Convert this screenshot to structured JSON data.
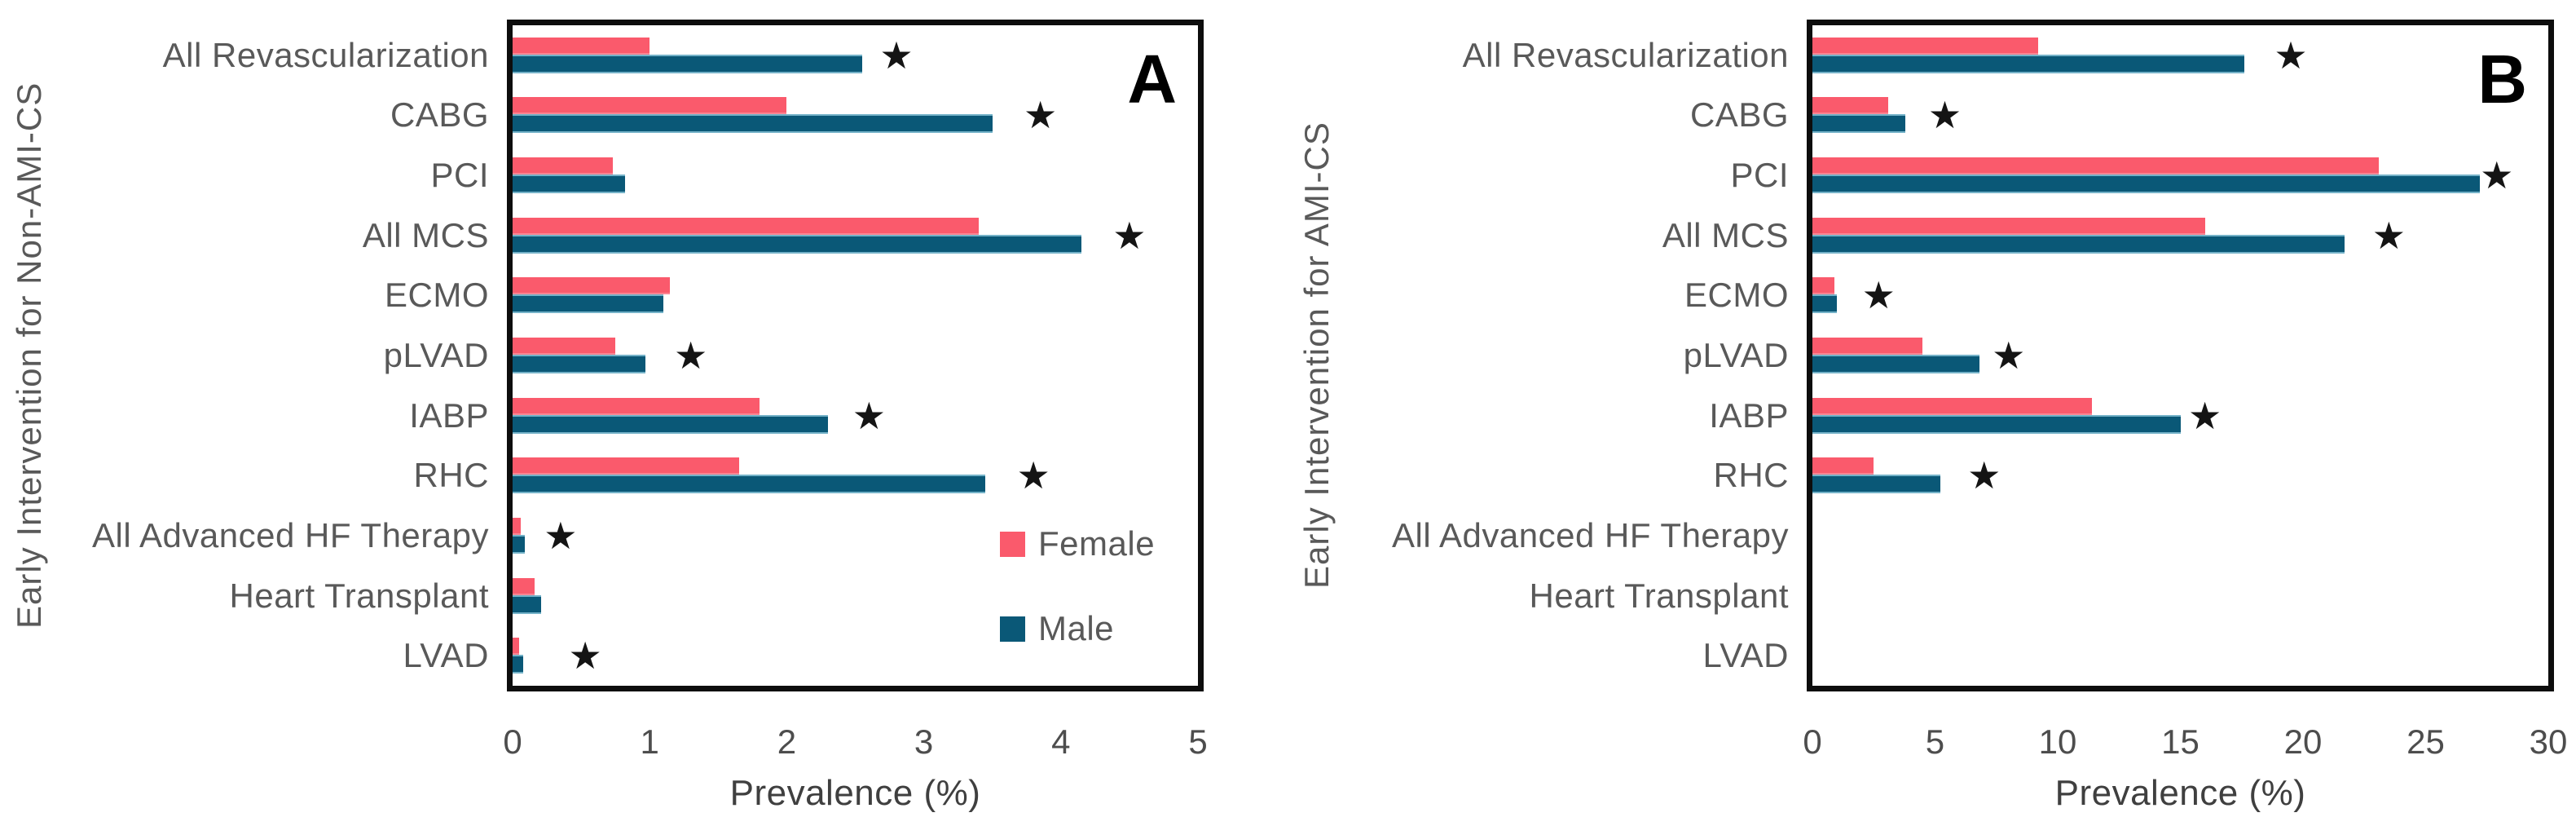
{
  "figure": {
    "series_labels": [
      "Female",
      "Male"
    ],
    "colors": {
      "female": "#fa5a6c",
      "female_edge": "#fc8593",
      "male": "#0a5877",
      "male_edge": "#74b2c8",
      "star": "#141414",
      "frame": "#0d0d0d",
      "label_text": "#595959",
      "tick_text": "#4d4d4d"
    },
    "star_glyph": "★"
  },
  "chart_data": [
    {
      "type": "bar",
      "orientation": "horizontal",
      "panel_label": "A",
      "ylabel": "Early Intervention for Non-AMI-CS",
      "xlabel": "Prevalence (%)",
      "xlim": [
        0,
        5
      ],
      "xticks": [
        0,
        1,
        2,
        3,
        4,
        5
      ],
      "grid": false,
      "legend_position": "inside-right",
      "legend_visible": true,
      "categories": [
        "All Revascularization",
        "CABG",
        "PCI",
        "All MCS",
        "ECMO",
        "pLVAD",
        "IABP",
        "RHC",
        "All Advanced HF Therapy",
        "Heart Transplant",
        "LVAD"
      ],
      "series": [
        {
          "name": "Female",
          "values": [
            1.0,
            2.0,
            0.73,
            3.4,
            1.15,
            0.75,
            1.8,
            1.65,
            0.06,
            0.16,
            0.05
          ]
        },
        {
          "name": "Male",
          "values": [
            2.55,
            3.5,
            0.82,
            4.15,
            1.1,
            0.97,
            2.3,
            3.45,
            0.09,
            0.21,
            0.08
          ]
        }
      ],
      "significance_star_x": [
        2.8,
        3.85,
        null,
        4.5,
        null,
        1.3,
        2.6,
        3.8,
        0.35,
        null,
        0.53
      ]
    },
    {
      "type": "bar",
      "orientation": "horizontal",
      "panel_label": "B",
      "ylabel": "Early Intervention for AMI-CS",
      "xlabel": "Prevalence (%)",
      "xlim": [
        0,
        30
      ],
      "xticks": [
        0,
        5,
        10,
        15,
        20,
        25,
        30
      ],
      "grid": false,
      "legend_position": "none",
      "legend_visible": false,
      "categories": [
        "All Revascularization",
        "CABG",
        "PCI",
        "All MCS",
        "ECMO",
        "pLVAD",
        "IABP",
        "RHC",
        "All Advanced HF Therapy",
        "Heart Transplant",
        "LVAD"
      ],
      "series": [
        {
          "name": "Female",
          "values": [
            9.2,
            3.1,
            23.1,
            16.0,
            0.9,
            4.5,
            11.4,
            2.5,
            0,
            0,
            0
          ]
        },
        {
          "name": "Male",
          "values": [
            17.6,
            3.8,
            27.2,
            21.7,
            1.0,
            6.8,
            15.0,
            5.2,
            0,
            0,
            0
          ]
        }
      ],
      "significance_star_x": [
        19.5,
        5.4,
        27.9,
        23.5,
        2.7,
        8.0,
        16.0,
        7.0,
        null,
        null,
        null
      ]
    }
  ]
}
